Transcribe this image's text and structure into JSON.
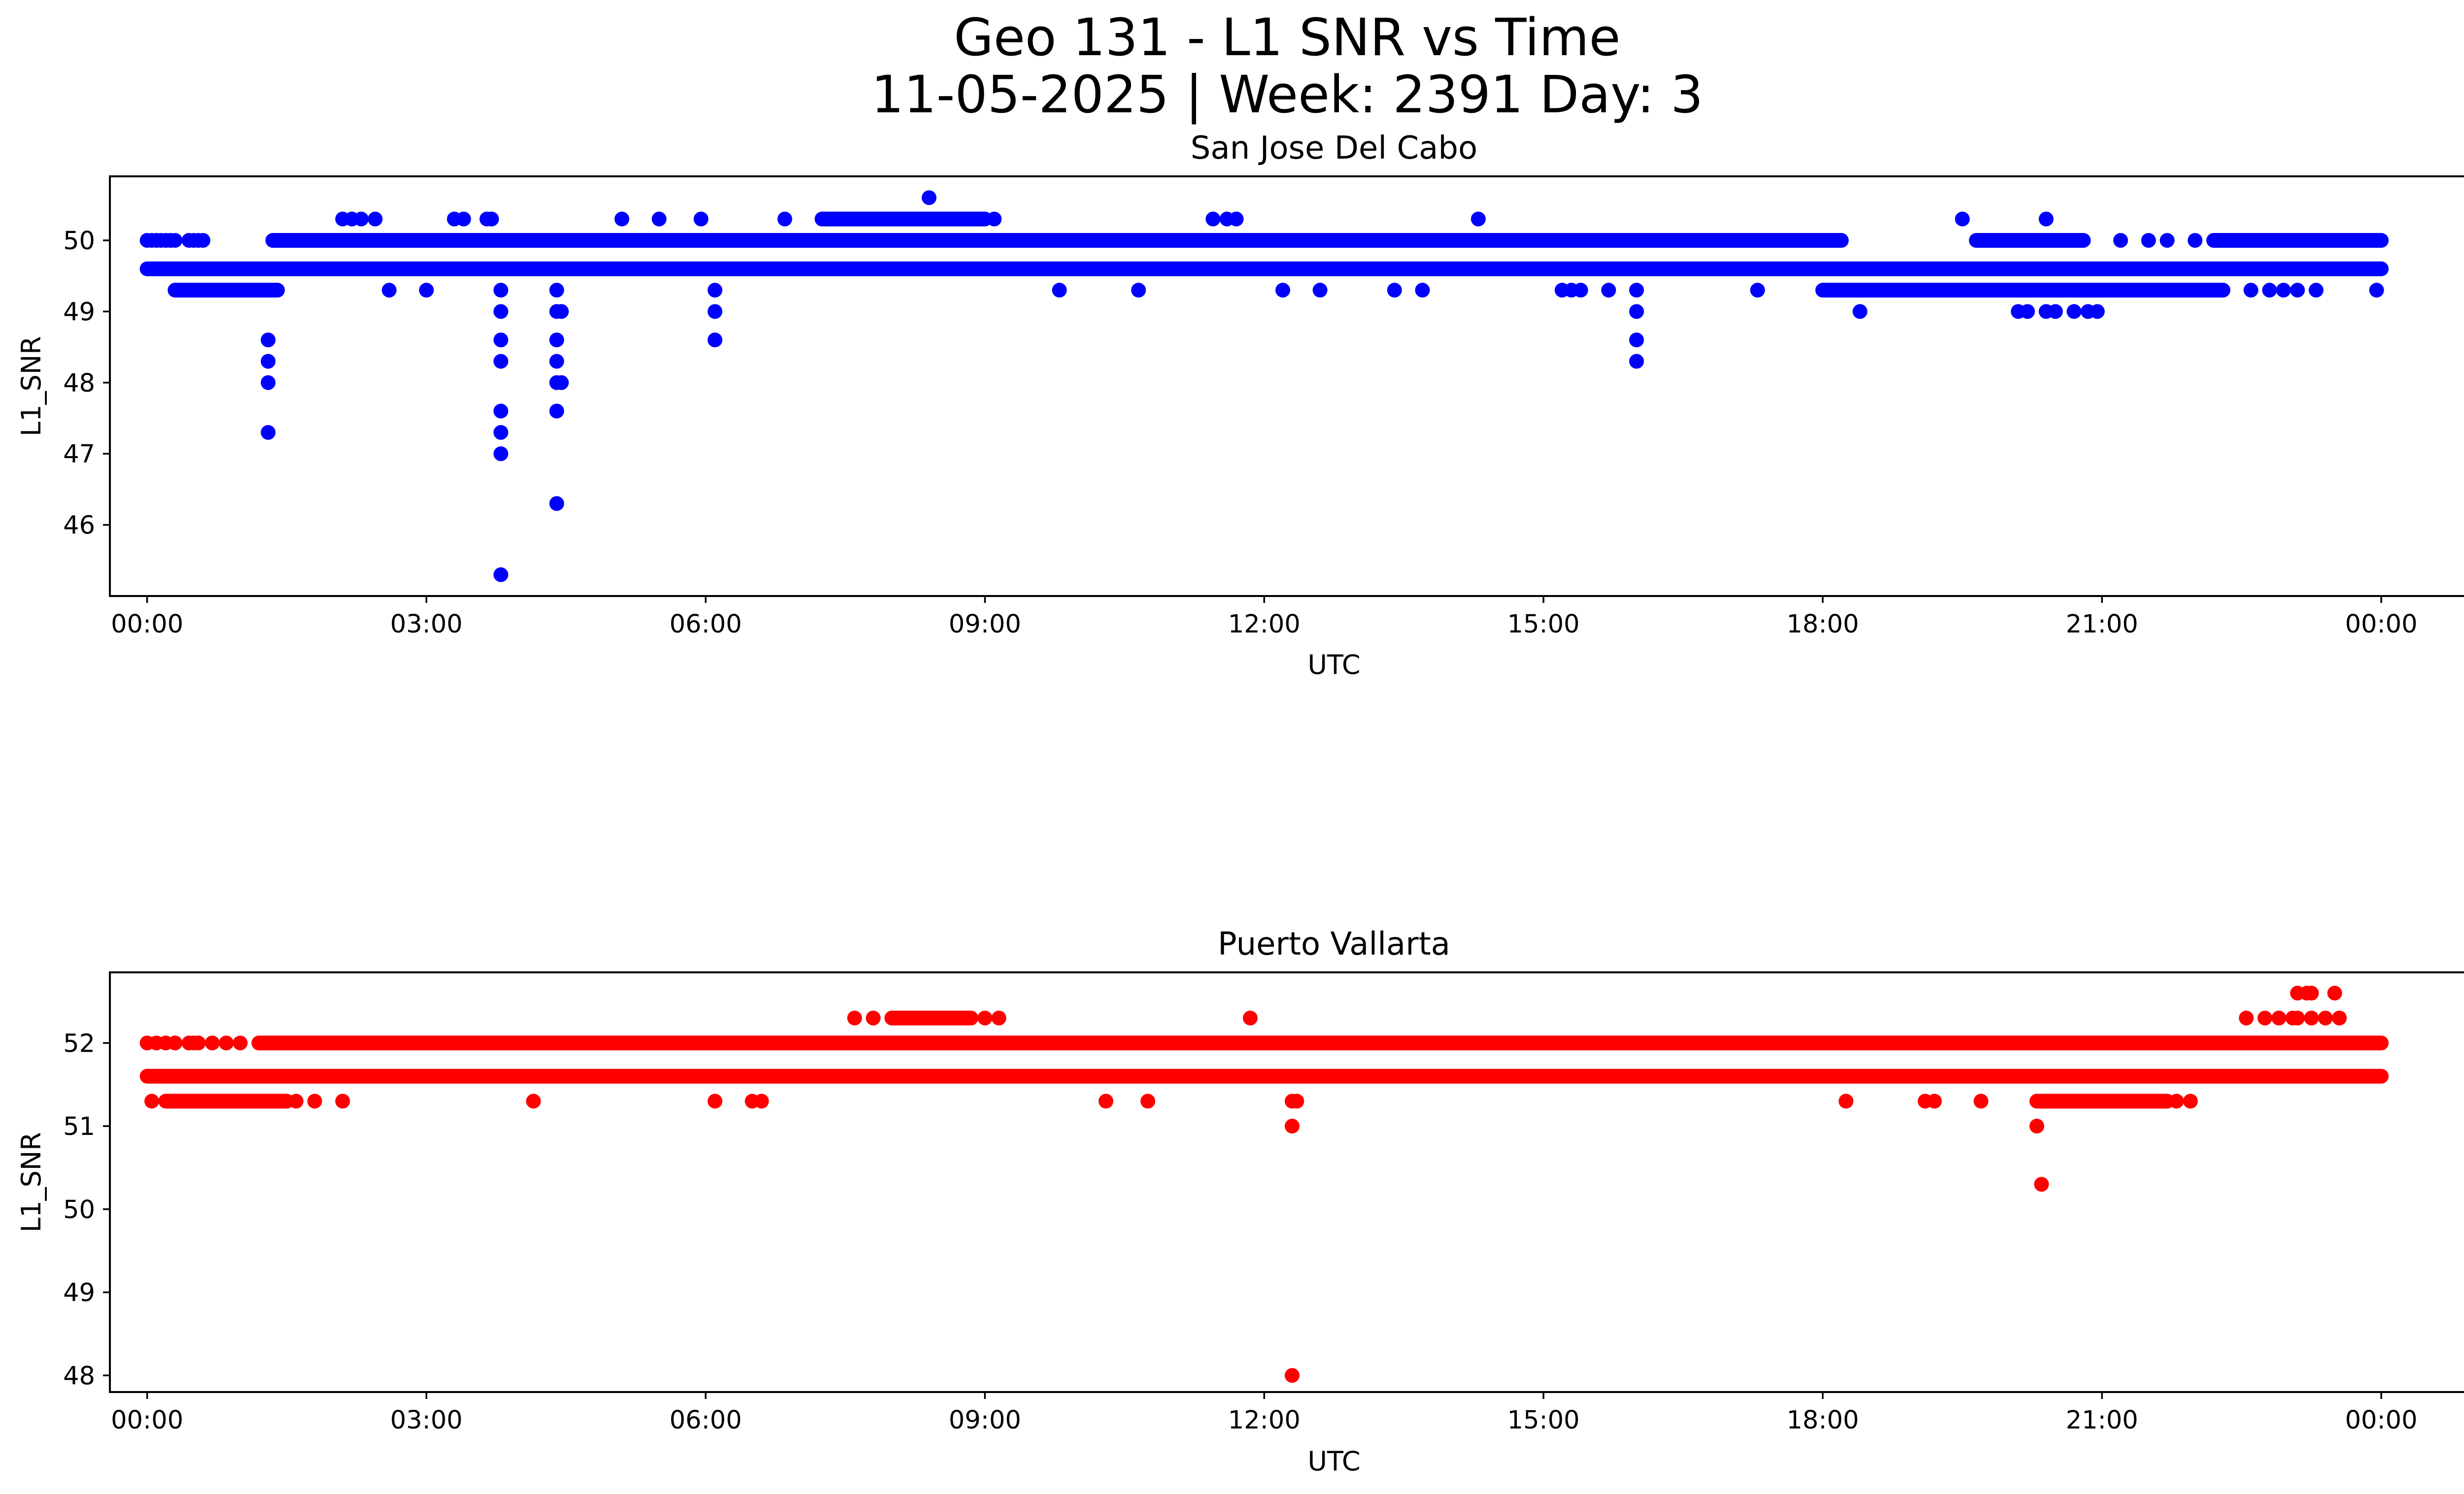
{
  "figure": {
    "title_line1": "Geo 131 - L1 SNR vs Time",
    "title_line2": "11-05-2025 | Week: 2391 Day: 3"
  },
  "chart_data": [
    {
      "type": "scatter",
      "title": "San Jose Del Cabo",
      "xlabel": "UTC",
      "ylabel": "L1_SNR",
      "color": "#0000ff",
      "xlim_hours": [
        -0.4,
        25.9
      ],
      "ylim": [
        45.0,
        50.9
      ],
      "x_ticks": [
        {
          "hour": 0,
          "label": "00:00"
        },
        {
          "hour": 3,
          "label": "03:00"
        },
        {
          "hour": 6,
          "label": "06:00"
        },
        {
          "hour": 9,
          "label": "09:00"
        },
        {
          "hour": 12,
          "label": "12:00"
        },
        {
          "hour": 15,
          "label": "15:00"
        },
        {
          "hour": 18,
          "label": "18:00"
        },
        {
          "hour": 21,
          "label": "21:00"
        },
        {
          "hour": 24,
          "label": "00:00"
        }
      ],
      "y_ticks": [
        46,
        47,
        48,
        49,
        50
      ],
      "bands": [
        {
          "y": 49.6,
          "x_start": 0.0,
          "x_end": 24.0
        },
        {
          "y": 50.0,
          "x_start": 1.35,
          "x_end": 18.2
        },
        {
          "y": 50.0,
          "x_start": 19.65,
          "x_end": 20.8
        },
        {
          "y": 50.0,
          "x_start": 22.2,
          "x_end": 24.0
        },
        {
          "y": 49.3,
          "x_start": 0.3,
          "x_end": 1.4
        },
        {
          "y": 49.3,
          "x_start": 18.0,
          "x_end": 22.3
        },
        {
          "y": 50.3,
          "x_start": 7.25,
          "x_end": 9.0
        }
      ],
      "points": [
        [
          0.0,
          50.0
        ],
        [
          0.05,
          50.0
        ],
        [
          0.1,
          50.0
        ],
        [
          0.15,
          50.0
        ],
        [
          0.2,
          50.0
        ],
        [
          0.25,
          50.0
        ],
        [
          0.3,
          50.0
        ],
        [
          0.45,
          50.0
        ],
        [
          0.5,
          50.0
        ],
        [
          0.55,
          50.0
        ],
        [
          0.6,
          50.0
        ],
        [
          1.3,
          48.6
        ],
        [
          1.3,
          48.3
        ],
        [
          1.3,
          48.0
        ],
        [
          1.3,
          47.3
        ],
        [
          2.1,
          50.3
        ],
        [
          2.2,
          50.3
        ],
        [
          2.3,
          50.3
        ],
        [
          2.45,
          50.3
        ],
        [
          2.6,
          49.3
        ],
        [
          3.0,
          49.3
        ],
        [
          3.3,
          50.3
        ],
        [
          3.4,
          50.3
        ],
        [
          3.65,
          50.3
        ],
        [
          3.7,
          50.3
        ],
        [
          3.8,
          49.3
        ],
        [
          3.8,
          49.0
        ],
        [
          3.8,
          48.6
        ],
        [
          3.8,
          48.3
        ],
        [
          3.8,
          47.6
        ],
        [
          3.8,
          47.3
        ],
        [
          3.8,
          47.0
        ],
        [
          3.8,
          45.3
        ],
        [
          4.4,
          49.3
        ],
        [
          4.4,
          49.0
        ],
        [
          4.4,
          48.6
        ],
        [
          4.4,
          48.3
        ],
        [
          4.4,
          48.0
        ],
        [
          4.4,
          47.6
        ],
        [
          4.4,
          46.3
        ],
        [
          4.45,
          49.0
        ],
        [
          4.45,
          48.0
        ],
        [
          5.1,
          50.3
        ],
        [
          5.5,
          50.3
        ],
        [
          5.95,
          50.3
        ],
        [
          6.1,
          49.3
        ],
        [
          6.1,
          49.0
        ],
        [
          6.1,
          48.6
        ],
        [
          6.85,
          50.3
        ],
        [
          8.4,
          50.6
        ],
        [
          9.1,
          50.3
        ],
        [
          9.8,
          49.3
        ],
        [
          10.65,
          49.3
        ],
        [
          11.45,
          50.3
        ],
        [
          11.6,
          50.3
        ],
        [
          11.7,
          50.3
        ],
        [
          12.2,
          49.3
        ],
        [
          12.6,
          49.3
        ],
        [
          13.4,
          49.3
        ],
        [
          13.7,
          49.3
        ],
        [
          14.3,
          50.3
        ],
        [
          15.2,
          49.3
        ],
        [
          15.3,
          49.3
        ],
        [
          15.4,
          49.3
        ],
        [
          15.7,
          49.3
        ],
        [
          16.0,
          49.3
        ],
        [
          16.0,
          49.0
        ],
        [
          16.0,
          48.6
        ],
        [
          16.0,
          48.3
        ],
        [
          17.3,
          49.3
        ],
        [
          18.4,
          49.0
        ],
        [
          19.5,
          50.3
        ],
        [
          20.4,
          50.3
        ],
        [
          20.1,
          49.0
        ],
        [
          20.2,
          49.0
        ],
        [
          20.4,
          49.0
        ],
        [
          20.5,
          49.0
        ],
        [
          20.7,
          49.0
        ],
        [
          20.85,
          49.0
        ],
        [
          20.95,
          49.0
        ],
        [
          21.2,
          50.0
        ],
        [
          21.5,
          50.0
        ],
        [
          21.7,
          50.0
        ],
        [
          22.0,
          50.0
        ],
        [
          22.6,
          49.3
        ],
        [
          22.8,
          49.3
        ],
        [
          22.95,
          49.3
        ],
        [
          23.1,
          49.3
        ],
        [
          23.3,
          49.3
        ],
        [
          23.95,
          49.3
        ]
      ]
    },
    {
      "type": "scatter",
      "title": "Puerto Vallarta",
      "xlabel": "UTC",
      "ylabel": "L1_SNR",
      "color": "#ff0000",
      "xlim_hours": [
        -0.4,
        25.9
      ],
      "ylim": [
        47.8,
        52.85
      ],
      "x_ticks": [
        {
          "hour": 0,
          "label": "00:00"
        },
        {
          "hour": 3,
          "label": "03:00"
        },
        {
          "hour": 6,
          "label": "06:00"
        },
        {
          "hour": 9,
          "label": "09:00"
        },
        {
          "hour": 12,
          "label": "12:00"
        },
        {
          "hour": 15,
          "label": "15:00"
        },
        {
          "hour": 18,
          "label": "18:00"
        },
        {
          "hour": 21,
          "label": "21:00"
        },
        {
          "hour": 24,
          "label": "00:00"
        }
      ],
      "y_ticks": [
        48,
        49,
        50,
        51,
        52
      ],
      "bands": [
        {
          "y": 51.6,
          "x_start": 0.0,
          "x_end": 24.0
        },
        {
          "y": 52.0,
          "x_start": 1.2,
          "x_end": 24.0
        },
        {
          "y": 51.3,
          "x_start": 0.2,
          "x_end": 1.5
        },
        {
          "y": 51.3,
          "x_start": 20.3,
          "x_end": 21.7
        },
        {
          "y": 52.3,
          "x_start": 8.0,
          "x_end": 8.85
        }
      ],
      "points": [
        [
          0.0,
          52.0
        ],
        [
          0.1,
          52.0
        ],
        [
          0.2,
          52.0
        ],
        [
          0.3,
          52.0
        ],
        [
          0.45,
          52.0
        ],
        [
          0.5,
          52.0
        ],
        [
          0.55,
          52.0
        ],
        [
          0.7,
          52.0
        ],
        [
          0.85,
          52.0
        ],
        [
          1.0,
          52.0
        ],
        [
          0.05,
          51.3
        ],
        [
          1.6,
          51.3
        ],
        [
          1.8,
          51.3
        ],
        [
          2.1,
          51.3
        ],
        [
          4.15,
          51.3
        ],
        [
          6.1,
          51.3
        ],
        [
          6.5,
          51.3
        ],
        [
          6.6,
          51.3
        ],
        [
          7.6,
          52.3
        ],
        [
          7.8,
          52.3
        ],
        [
          9.0,
          52.3
        ],
        [
          9.15,
          52.3
        ],
        [
          10.3,
          51.3
        ],
        [
          10.75,
          51.3
        ],
        [
          11.85,
          52.3
        ],
        [
          12.3,
          51.3
        ],
        [
          12.35,
          51.3
        ],
        [
          12.3,
          51.0
        ],
        [
          12.3,
          48.0
        ],
        [
          18.25,
          51.3
        ],
        [
          19.1,
          51.3
        ],
        [
          19.2,
          51.3
        ],
        [
          19.7,
          51.3
        ],
        [
          20.3,
          51.0
        ],
        [
          20.35,
          50.3
        ],
        [
          21.8,
          51.3
        ],
        [
          21.95,
          51.3
        ],
        [
          22.55,
          52.3
        ],
        [
          22.75,
          52.3
        ],
        [
          22.9,
          52.3
        ],
        [
          23.05,
          52.3
        ],
        [
          23.1,
          52.3
        ],
        [
          23.25,
          52.3
        ],
        [
          23.1,
          52.6
        ],
        [
          23.2,
          52.6
        ],
        [
          23.25,
          52.6
        ],
        [
          23.5,
          52.6
        ],
        [
          23.4,
          52.3
        ],
        [
          23.55,
          52.3
        ]
      ]
    }
  ]
}
